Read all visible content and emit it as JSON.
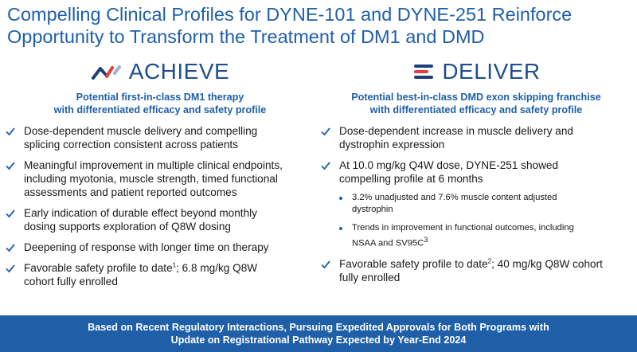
{
  "title": {
    "line1": "Compelling Clinical Profiles for DYNE-101 and DYNE-251 Reinforce",
    "line2": "Opportunity to Transform the Treatment of DM1 and DMD"
  },
  "achieve": {
    "brand": "ACHIEVE",
    "subhead": {
      "line1": "Potential first-in-class DM1 therapy",
      "line2": "with differentiated efficacy and safety profile"
    },
    "items": [
      {
        "l1": "Dose-dependent muscle delivery and compelling",
        "l2": "splicing correction consistent across patients"
      },
      {
        "l1": "Meaningful improvement in multiple clinical endpoints,",
        "l2": "including myotonia, muscle strength, timed functional",
        "l3": "assessments and patient reported outcomes"
      },
      {
        "l1": "Early indication of durable effect beyond monthly",
        "l2": "dosing supports exploration of Q8W dosing"
      },
      {
        "l1": "Deepening of response with longer time on therapy"
      },
      {
        "l1a": "Favorable safety profile to date",
        "sup": "1",
        "l1b": "; 6.8 mg/kg Q8W",
        "l2": "cohort fully enrolled"
      }
    ]
  },
  "deliver": {
    "brand": "DELIVER",
    "subhead": {
      "line1": "Potential best-in-class DMD exon skipping franchise",
      "line2": "with differentiated efficacy and safety profile"
    },
    "items": [
      {
        "l1": "Dose-dependent increase in muscle delivery and",
        "l2": "dystrophin expression"
      },
      {
        "l1": "At 10.0 mg/kg Q4W dose, DYNE-251 showed",
        "l2": "compelling profile at 6 months"
      },
      {
        "l1a": "Favorable safety profile to date",
        "sup": "2",
        "l1b": "; 40 mg/kg Q8W cohort",
        "l2": "fully enrolled"
      }
    ],
    "subitems": [
      {
        "l1": "3.2% unadjusted and 7.6% muscle content adjusted",
        "l2": "dystrophin"
      },
      {
        "l1": "Trends in improvement in functional outcomes, including",
        "l2a": "NSAA and SV95C",
        "sup": "3"
      }
    ]
  },
  "banner": {
    "line1": "Based on Recent Regulatory Interactions, Pursuing Expedited Approvals for Both Programs with",
    "line2": "Update on Registrational Pathway Expected by Year-End 2024"
  },
  "icons": {
    "check": "check-icon",
    "achieve_logo": "achieve-logo-icon",
    "deliver_logo": "deliver-logo-icon"
  },
  "colors": {
    "accent": "#1f5fa8",
    "brand_dark": "#1f4f8f",
    "logo_red": "#e0403a",
    "logo_navy": "#1f3f7a"
  }
}
